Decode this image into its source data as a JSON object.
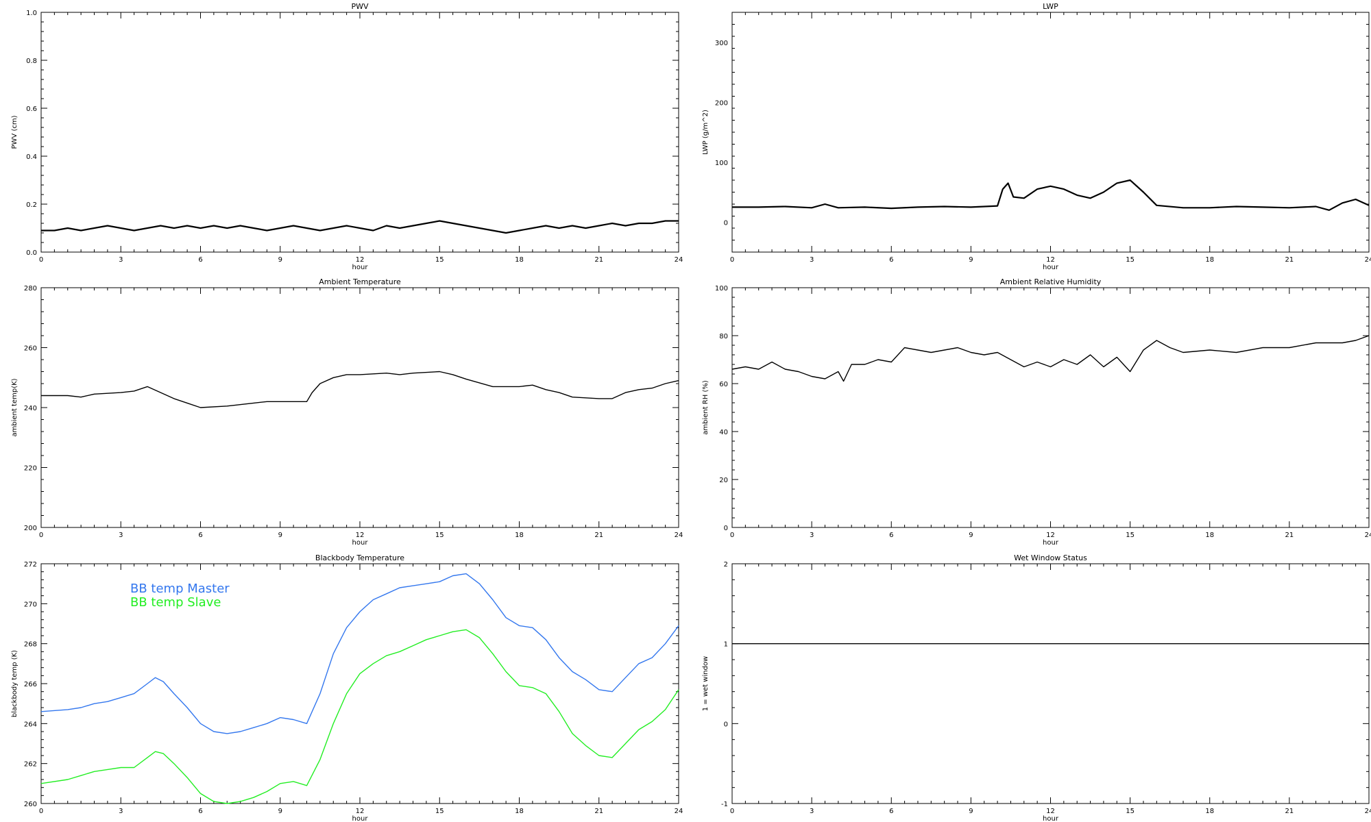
{
  "chart_data": [
    {
      "type": "line",
      "title": "PWV",
      "xlabel": "hour",
      "ylabel": "PWV (cm)",
      "xlim": [
        0,
        24
      ],
      "ylim": [
        0.0,
        1.0
      ],
      "xticks": [
        0,
        3,
        6,
        9,
        12,
        15,
        18,
        21,
        24
      ],
      "yticks": [
        0.0,
        0.2,
        0.4,
        0.6,
        0.8,
        1.0
      ],
      "ytick_labels": [
        "0.0",
        "0.2",
        "0.4",
        "0.6",
        "0.8",
        "1.0"
      ],
      "series": [
        {
          "color": "#000000",
          "x": [
            0,
            0.5,
            1,
            1.5,
            2,
            2.5,
            3,
            3.5,
            4,
            4.5,
            5,
            5.5,
            6,
            6.5,
            7,
            7.5,
            8,
            8.5,
            9,
            9.5,
            10,
            10.5,
            11,
            11.5,
            12,
            12.5,
            13,
            13.5,
            14,
            14.5,
            15,
            15.5,
            16,
            16.5,
            17,
            17.5,
            18,
            18.5,
            19,
            19.5,
            20,
            20.5,
            21,
            21.5,
            22,
            22.5,
            23,
            23.5,
            24
          ],
          "y": [
            0.09,
            0.09,
            0.1,
            0.09,
            0.1,
            0.11,
            0.1,
            0.09,
            0.1,
            0.11,
            0.1,
            0.11,
            0.1,
            0.11,
            0.1,
            0.11,
            0.1,
            0.09,
            0.1,
            0.11,
            0.1,
            0.09,
            0.1,
            0.11,
            0.1,
            0.09,
            0.11,
            0.1,
            0.11,
            0.12,
            0.13,
            0.12,
            0.11,
            0.1,
            0.09,
            0.08,
            0.09,
            0.1,
            0.11,
            0.1,
            0.11,
            0.1,
            0.11,
            0.12,
            0.11,
            0.12,
            0.12,
            0.13,
            0.13
          ]
        }
      ]
    },
    {
      "type": "line",
      "title": "LWP",
      "xlabel": "hour",
      "ylabel": "LWP (g/m^2)",
      "xlim": [
        0,
        24
      ],
      "ylim": [
        -50,
        350
      ],
      "xticks": [
        0,
        3,
        6,
        9,
        12,
        15,
        18,
        21,
        24
      ],
      "yticks": [
        0,
        100,
        200,
        300
      ],
      "ytick_labels": [
        "0",
        "100",
        "200",
        "300"
      ],
      "series": [
        {
          "color": "#000000",
          "x": [
            0,
            1,
            2,
            3,
            3.5,
            4,
            5,
            6,
            7,
            8,
            9,
            10,
            10.2,
            10.4,
            10.6,
            11,
            11.5,
            12,
            12.5,
            13,
            13.5,
            14,
            14.5,
            15,
            15.5,
            16,
            17,
            18,
            19,
            20,
            21,
            22,
            22.5,
            23,
            23.5,
            24
          ],
          "y": [
            25,
            25,
            26,
            24,
            30,
            24,
            25,
            23,
            25,
            26,
            25,
            27,
            55,
            65,
            42,
            40,
            55,
            60,
            55,
            45,
            40,
            50,
            65,
            70,
            50,
            28,
            24,
            24,
            26,
            25,
            24,
            26,
            20,
            32,
            38,
            28
          ]
        }
      ]
    },
    {
      "type": "line",
      "title": "Ambient Temperature",
      "xlabel": "hour",
      "ylabel": "ambient temp(K)",
      "xlim": [
        0,
        24
      ],
      "ylim": [
        200,
        280
      ],
      "xticks": [
        0,
        3,
        6,
        9,
        12,
        15,
        18,
        21,
        24
      ],
      "yticks": [
        200,
        220,
        240,
        260,
        280
      ],
      "ytick_labels": [
        "200",
        "220",
        "240",
        "260",
        "280"
      ],
      "series": [
        {
          "color": "#000000",
          "x": [
            0,
            1,
            1.5,
            2,
            3,
            3.5,
            4,
            4.5,
            5,
            5.5,
            6,
            7,
            8,
            8.5,
            9,
            10,
            10.2,
            10.5,
            11,
            11.5,
            12,
            13,
            13.5,
            14,
            15,
            15.5,
            16,
            17,
            18,
            18.5,
            19,
            19.5,
            20,
            21,
            21.5,
            22,
            22.5,
            23,
            23.5,
            24
          ],
          "y": [
            244,
            244,
            243.5,
            244.5,
            245,
            245.5,
            247,
            245,
            243,
            241.5,
            240,
            240.5,
            241.5,
            242,
            242,
            242,
            245,
            248,
            250,
            251,
            251,
            251.5,
            251,
            251.5,
            252,
            251,
            249.5,
            247,
            247,
            247.5,
            246,
            245,
            243.5,
            243,
            243,
            245,
            246,
            246.5,
            248,
            249
          ]
        }
      ]
    },
    {
      "type": "line",
      "title": "Ambient Relative Humidity",
      "xlabel": "hour",
      "ylabel": "ambient RH (%)",
      "xlim": [
        0,
        24
      ],
      "ylim": [
        0,
        100
      ],
      "xticks": [
        0,
        3,
        6,
        9,
        12,
        15,
        18,
        21,
        24
      ],
      "yticks": [
        0,
        20,
        40,
        60,
        80,
        100
      ],
      "ytick_labels": [
        "0",
        "20",
        "40",
        "60",
        "80",
        "100"
      ],
      "series": [
        {
          "color": "#000000",
          "x": [
            0,
            0.5,
            1,
            1.5,
            2,
            2.5,
            3,
            3.5,
            4,
            4.2,
            4.5,
            5,
            5.5,
            6,
            6.5,
            7,
            7.5,
            8,
            8.5,
            9,
            9.5,
            10,
            10.5,
            11,
            11.5,
            12,
            12.5,
            13,
            13.5,
            14,
            14.5,
            15,
            15.5,
            16,
            16.5,
            17,
            18,
            19,
            20,
            21,
            22,
            23,
            23.5,
            24
          ],
          "y": [
            66,
            67,
            66,
            69,
            66,
            65,
            63,
            62,
            65,
            61,
            68,
            68,
            70,
            69,
            75,
            74,
            73,
            74,
            75,
            73,
            72,
            73,
            70,
            67,
            69,
            67,
            70,
            68,
            72,
            67,
            71,
            65,
            74,
            78,
            75,
            73,
            74,
            73,
            75,
            75,
            77,
            77,
            78,
            80
          ]
        }
      ]
    },
    {
      "type": "line",
      "title": "Blackbody Temperature",
      "xlabel": "hour",
      "ylabel": "blackbody temp (K)",
      "xlim": [
        0,
        24
      ],
      "ylim": [
        260,
        272
      ],
      "xticks": [
        0,
        3,
        6,
        9,
        12,
        15,
        18,
        21,
        24
      ],
      "yticks": [
        260,
        262,
        264,
        266,
        268,
        270,
        272
      ],
      "ytick_labels": [
        "260",
        "262",
        "264",
        "266",
        "268",
        "270",
        "272"
      ],
      "legend": {
        "placement": "top-left"
      },
      "series": [
        {
          "name": "BB temp Master",
          "color": "#3377ee",
          "x": [
            0,
            1,
            1.5,
            2,
            2.5,
            3,
            3.5,
            4,
            4.3,
            4.6,
            5,
            5.5,
            6,
            6.5,
            7,
            7.5,
            8,
            8.5,
            9,
            9.5,
            10,
            10.5,
            11,
            11.5,
            12,
            12.5,
            13,
            13.5,
            14,
            14.5,
            15,
            15.5,
            16,
            16.5,
            17,
            17.5,
            18,
            18.5,
            19,
            19.5,
            20,
            20.5,
            21,
            21.5,
            22,
            22.5,
            23,
            23.5,
            24
          ],
          "y": [
            264.6,
            264.7,
            264.8,
            265.0,
            265.1,
            265.3,
            265.5,
            266.0,
            266.3,
            266.1,
            265.5,
            264.8,
            264.0,
            263.6,
            263.5,
            263.6,
            263.8,
            264.0,
            264.3,
            264.2,
            264.0,
            265.5,
            267.5,
            268.8,
            269.6,
            270.2,
            270.5,
            270.8,
            270.9,
            271.0,
            271.1,
            271.4,
            271.5,
            271.0,
            270.2,
            269.3,
            268.9,
            268.8,
            268.2,
            267.3,
            266.6,
            266.2,
            265.7,
            265.6,
            266.3,
            267.0,
            267.3,
            268.0,
            268.9
          ]
        },
        {
          "name": "BB temp Slave",
          "color": "#22ee22",
          "x": [
            0,
            1,
            1.5,
            2,
            2.5,
            3,
            3.5,
            4,
            4.3,
            4.6,
            5,
            5.5,
            6,
            6.5,
            7,
            7.5,
            8,
            8.5,
            9,
            9.5,
            10,
            10.5,
            11,
            11.5,
            12,
            12.5,
            13,
            13.5,
            14,
            14.5,
            15,
            15.5,
            16,
            16.5,
            17,
            17.5,
            18,
            18.5,
            19,
            19.5,
            20,
            20.5,
            21,
            21.5,
            22,
            22.5,
            23,
            23.5,
            24
          ],
          "y": [
            261.0,
            261.2,
            261.4,
            261.6,
            261.7,
            261.8,
            261.8,
            262.3,
            262.6,
            262.5,
            262.0,
            261.3,
            260.5,
            260.1,
            260.0,
            260.1,
            260.3,
            260.6,
            261.0,
            261.1,
            260.9,
            262.2,
            264.0,
            265.5,
            266.5,
            267.0,
            267.4,
            267.6,
            267.9,
            268.2,
            268.4,
            268.6,
            268.7,
            268.3,
            267.5,
            266.6,
            265.9,
            265.8,
            265.5,
            264.6,
            263.5,
            262.9,
            262.4,
            262.3,
            263.0,
            263.7,
            264.1,
            264.7,
            265.7
          ]
        }
      ]
    },
    {
      "type": "line",
      "title": "Wet Window Status",
      "xlabel": "hour",
      "ylabel": "1 = wet window",
      "xlim": [
        0,
        24
      ],
      "ylim": [
        -1,
        2
      ],
      "xticks": [
        0,
        3,
        6,
        9,
        12,
        15,
        18,
        21,
        24
      ],
      "yticks": [
        -1,
        0,
        1,
        2
      ],
      "ytick_labels": [
        "-1",
        "0",
        "1",
        "2"
      ],
      "series": [
        {
          "color": "#000000",
          "x": [
            0,
            24
          ],
          "y": [
            1,
            1
          ]
        }
      ]
    }
  ]
}
